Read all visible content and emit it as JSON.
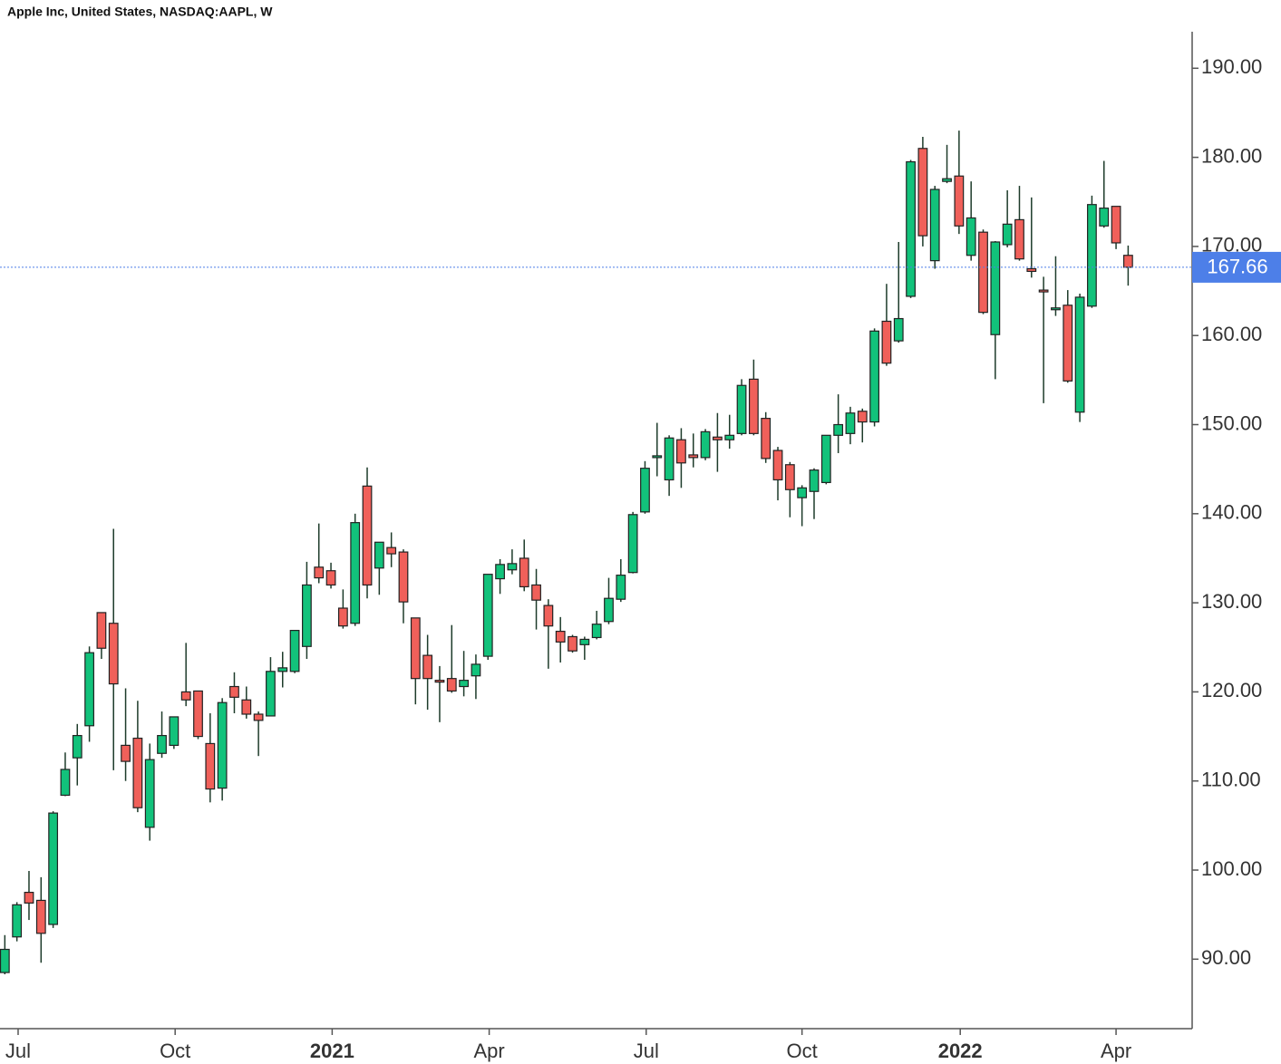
{
  "chart_data": {
    "type": "candlestick",
    "title": "Apple Inc, United States, NASDAQ:AAPL, W",
    "open": [
      88.5,
      92.5,
      97.5,
      96.6,
      93.9,
      108.4,
      112.6,
      116.2,
      128.9,
      127.7,
      114,
      114.8,
      104.8,
      113.1,
      114,
      120,
      120.1,
      114.2,
      109.2,
      120.6,
      119.1,
      117.5,
      117.3,
      122.3,
      122.3,
      125.1,
      134,
      133.6,
      129.4,
      127.7,
      143.1,
      133.9,
      136.2,
      135.7,
      128.3,
      124.1,
      121.3,
      121.5,
      120.6,
      121.8,
      124,
      132.7,
      133.7,
      135,
      132,
      129.7,
      126.8,
      126.2,
      125.3,
      126.1,
      127.9,
      130.4,
      133.4,
      140.2,
      146.3,
      143.8,
      148.3,
      146.6,
      146.3,
      148.6,
      148.3,
      149,
      155.1,
      150.7,
      147.1,
      145.5,
      141.8,
      142.5,
      143.5,
      148.8,
      149,
      151.5,
      150.3,
      161.6,
      159.4,
      164.4,
      181,
      168.4,
      177.3,
      177.9,
      169,
      171.6,
      160.1,
      170.2,
      173,
      167.5,
      165.1,
      162.9,
      163.4,
      151.4,
      163.3,
      172.3,
      174.5,
      169
    ],
    "high": [
      92.7,
      96.4,
      99.9,
      99.2,
      106.6,
      113.2,
      116.4,
      125.1,
      128.9,
      138.3,
      120.4,
      119,
      114.2,
      117.8,
      117.2,
      125.5,
      120.1,
      117.6,
      119.3,
      122.2,
      120.6,
      117.8,
      123.9,
      124.5,
      126.9,
      134.6,
      138.9,
      134.5,
      131.5,
      140,
      145.2,
      136.8,
      137.9,
      136,
      128.3,
      126.4,
      122.9,
      127.5,
      124.6,
      124.2,
      133.2,
      134.9,
      136,
      137.1,
      133.8,
      130.4,
      128.4,
      126.4,
      126.2,
      129.1,
      132.8,
      134.9,
      140.2,
      145.9,
      150.2,
      148.8,
      149.6,
      149,
      149.5,
      151.3,
      151.1,
      155.1,
      157.3,
      151.4,
      147.5,
      145.8,
      143.2,
      145.1,
      148.8,
      153.4,
      152,
      151.8,
      160.8,
      165.8,
      170.5,
      179.7,
      182.3,
      176.8,
      181.4,
      183,
      177.3,
      171.9,
      170.6,
      176.3,
      176.8,
      175.5,
      166.6,
      168.9,
      165.1,
      164.7,
      175.7,
      179.6,
      174.5,
      170.1
    ],
    "low": [
      88.3,
      92,
      94.4,
      89.6,
      93.5,
      108.3,
      109.5,
      114.4,
      123.7,
      111.2,
      110,
      106.5,
      103.3,
      112.6,
      113.6,
      118.4,
      114.7,
      107.6,
      107.8,
      117.6,
      117,
      112.8,
      117.3,
      120.5,
      122.1,
      123.7,
      132.2,
      131.6,
      127.1,
      127.4,
      130.5,
      130.9,
      134,
      127.7,
      118.6,
      118,
      116.6,
      119.9,
      119.5,
      119.2,
      123.6,
      131,
      133.2,
      131.3,
      127,
      122.6,
      123.3,
      124.4,
      123.6,
      125.9,
      127.6,
      130.1,
      133.3,
      140,
      144.2,
      142,
      142.9,
      145.2,
      146,
      144.7,
      147.3,
      148.8,
      148.8,
      145.7,
      141.5,
      139.6,
      138.6,
      139.4,
      143.3,
      146.8,
      147.8,
      148,
      149.8,
      156.6,
      159.2,
      164.2,
      170,
      167.5,
      177.1,
      171.4,
      168.4,
      162.4,
      155.1,
      169.9,
      168.4,
      166.5,
      152.4,
      162.2,
      154.7,
      150.3,
      163.1,
      172.1,
      169.7,
      165.6
    ],
    "close": [
      91.1,
      96.1,
      96.3,
      92.9,
      106.4,
      111.3,
      115.1,
      124.4,
      124.9,
      120.9,
      112.2,
      107,
      112.4,
      115.1,
      117.2,
      119.1,
      115,
      109.1,
      118.8,
      119.4,
      117.5,
      116.8,
      122.3,
      122.7,
      126.9,
      132,
      132.8,
      132,
      127.4,
      139,
      132,
      136.8,
      135.5,
      130.1,
      121.5,
      121.5,
      121.1,
      120.1,
      121.3,
      123.1,
      133.2,
      134.3,
      134.4,
      131.8,
      130.3,
      127.4,
      125.6,
      124.6,
      125.9,
      127.6,
      130.5,
      133.1,
      139.9,
      145.1,
      146.5,
      148.5,
      145.7,
      146.3,
      149.2,
      148.3,
      148.8,
      154.4,
      149,
      146.2,
      143.8,
      142.7,
      142.9,
      144.9,
      148.8,
      150,
      151.3,
      150.3,
      160.5,
      156.9,
      161.9,
      179.5,
      171.2,
      176.4,
      177.6,
      172.3,
      173.2,
      162.6,
      170.5,
      172.5,
      168.6,
      167.2,
      164.9,
      163.1,
      154.9,
      164.3,
      174.7,
      174.3,
      170.4,
      167.66
    ],
    "xlim": [
      -0.4,
      98.3
    ],
    "xticks": [
      {
        "value": 1.1,
        "label": "Jul"
      },
      {
        "value": 14.1,
        "label": "Oct"
      },
      {
        "value": 27.1,
        "label": "2021"
      },
      {
        "value": 40.1,
        "label": "Apr"
      },
      {
        "value": 53.1,
        "label": "Jul"
      },
      {
        "value": 66,
        "label": "Oct"
      },
      {
        "value": 79.1,
        "label": "2022"
      },
      {
        "value": 92,
        "label": "Apr"
      }
    ],
    "ylim": [
      82.2,
      194.1
    ],
    "yticks": [
      {
        "value": 90,
        "label": "90.00"
      },
      {
        "value": 100,
        "label": "100.00"
      },
      {
        "value": 110,
        "label": "110.00"
      },
      {
        "value": 120,
        "label": "120.00"
      },
      {
        "value": 130,
        "label": "130.00"
      },
      {
        "value": 140,
        "label": "140.00"
      },
      {
        "value": 150,
        "label": "150.00"
      },
      {
        "value": 160,
        "label": "160.00"
      },
      {
        "value": 170,
        "label": "170.00"
      },
      {
        "value": 180,
        "label": "180.00"
      },
      {
        "value": 190,
        "label": "190.00"
      }
    ],
    "up_color": "#12c27b",
    "down_color": "#f0605a",
    "last_price_color": "#4d7fe8"
  }
}
